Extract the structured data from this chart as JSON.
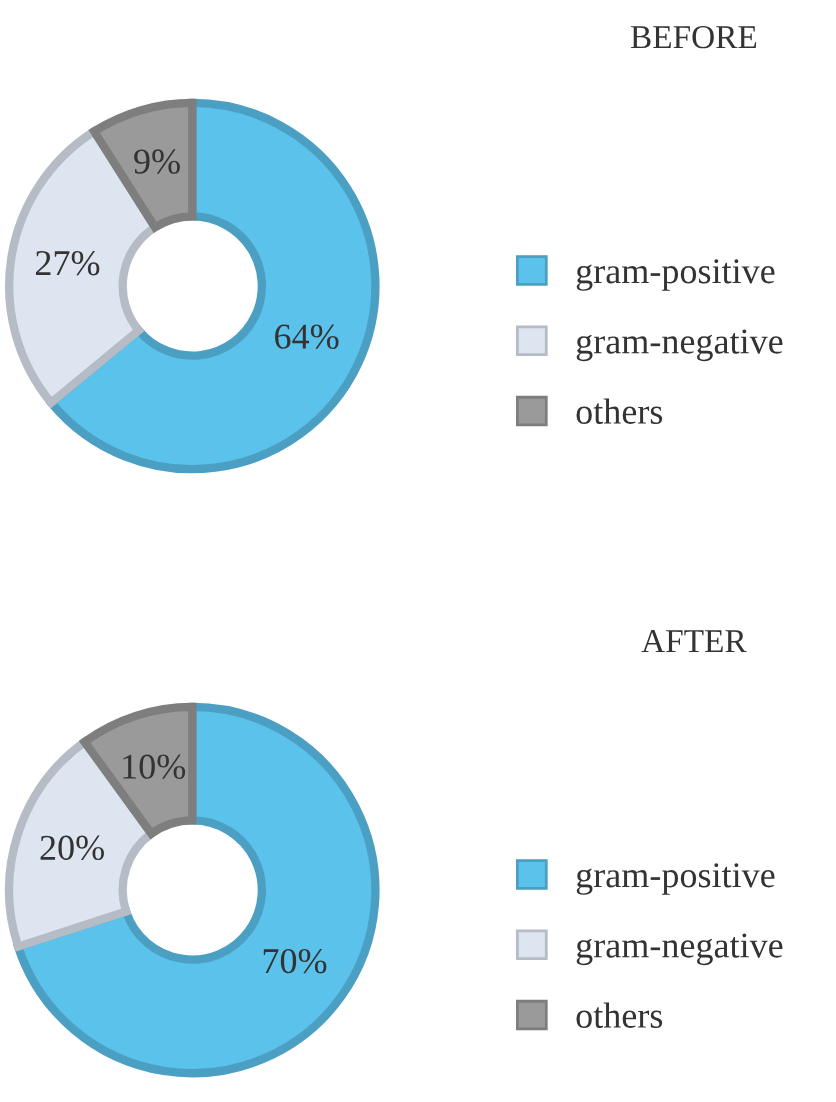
{
  "chart_data": [
    {
      "type": "donut",
      "title": "BEFORE",
      "categories": [
        "gram-positive",
        "gram-negative",
        "others"
      ],
      "values": [
        64,
        27,
        9
      ],
      "colors": [
        "#5bc2ec",
        "#dde5f0",
        "#9a9a9a"
      ],
      "value_labels": [
        "64%",
        "27%",
        "9%"
      ],
      "legend": "right"
    },
    {
      "type": "donut",
      "title": "AFTER",
      "categories": [
        "gram-positive",
        "gram-negative",
        "others"
      ],
      "values": [
        70,
        20,
        10
      ],
      "colors": [
        "#5bc2ec",
        "#dde5f0",
        "#9a9a9a"
      ],
      "value_labels": [
        "70%",
        "20%",
        "10%"
      ],
      "legend": "right"
    }
  ]
}
